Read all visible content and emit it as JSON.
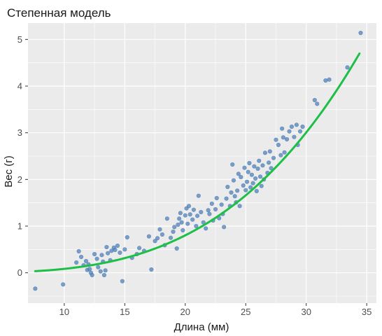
{
  "chart_data": {
    "type": "scatter",
    "title": "Степенная модель",
    "xlabel": "Длина (мм)",
    "ylabel": "Вес (г)",
    "xlim": [
      7,
      35.8
    ],
    "ylim": [
      -0.65,
      5.35
    ],
    "xticks": [
      10,
      15,
      20,
      25,
      30,
      35
    ],
    "yticks": [
      0,
      1,
      2,
      3,
      4,
      5
    ],
    "grid": true,
    "colors": {
      "points": "#4f81bd",
      "curve": "#1dbf46",
      "panel": "#ebebeb",
      "grid": "#ffffff"
    },
    "points": [
      [
        7.6,
        -0.34
      ],
      [
        9.9,
        -0.25
      ],
      [
        11.0,
        0.22
      ],
      [
        11.2,
        0.46
      ],
      [
        11.4,
        0.34
      ],
      [
        11.6,
        0.16
      ],
      [
        11.8,
        0.25
      ],
      [
        11.9,
        0.06
      ],
      [
        12.0,
        0.18
      ],
      [
        12.1,
        0.08
      ],
      [
        12.2,
        0.0
      ],
      [
        12.3,
        -0.05
      ],
      [
        12.5,
        0.4
      ],
      [
        12.7,
        0.3
      ],
      [
        12.8,
        0.12
      ],
      [
        13.0,
        0.03
      ],
      [
        13.1,
        0.38
      ],
      [
        13.2,
        0.24
      ],
      [
        13.3,
        -0.05
      ],
      [
        13.4,
        0.05
      ],
      [
        13.5,
        0.55
      ],
      [
        13.6,
        0.42
      ],
      [
        13.8,
        0.27
      ],
      [
        13.9,
        0.47
      ],
      [
        14.1,
        0.54
      ],
      [
        14.2,
        0.49
      ],
      [
        14.4,
        0.58
      ],
      [
        14.6,
        0.43
      ],
      [
        14.8,
        -0.18
      ],
      [
        15.0,
        0.5
      ],
      [
        15.2,
        0.76
      ],
      [
        15.6,
        0.32
      ],
      [
        16.0,
        0.4
      ],
      [
        16.2,
        0.53
      ],
      [
        16.6,
        0.47
      ],
      [
        17.0,
        0.78
      ],
      [
        17.2,
        0.07
      ],
      [
        17.5,
        0.68
      ],
      [
        17.7,
        0.74
      ],
      [
        17.9,
        0.93
      ],
      [
        18.1,
        0.82
      ],
      [
        18.3,
        0.59
      ],
      [
        18.5,
        1.16
      ],
      [
        18.8,
        0.75
      ],
      [
        19.0,
        0.88
      ],
      [
        19.1,
        0.98
      ],
      [
        19.3,
        0.52
      ],
      [
        19.4,
        1.03
      ],
      [
        19.5,
        1.16
      ],
      [
        19.6,
        1.28
      ],
      [
        19.7,
        1.08
      ],
      [
        19.8,
        0.91
      ],
      [
        20.0,
        1.23
      ],
      [
        20.1,
        1.38
      ],
      [
        20.2,
        1.05
      ],
      [
        20.3,
        1.43
      ],
      [
        20.4,
        1.25
      ],
      [
        20.6,
        1.14
      ],
      [
        20.7,
        1.35
      ],
      [
        20.9,
        1.0
      ],
      [
        21.0,
        1.22
      ],
      [
        21.1,
        1.65
      ],
      [
        21.3,
        1.3
      ],
      [
        21.5,
        1.08
      ],
      [
        21.7,
        0.95
      ],
      [
        21.9,
        1.34
      ],
      [
        22.0,
        1.26
      ],
      [
        22.2,
        1.48
      ],
      [
        22.3,
        1.12
      ],
      [
        22.5,
        1.36
      ],
      [
        22.6,
        1.6
      ],
      [
        22.8,
        1.17
      ],
      [
        23.0,
        1.46
      ],
      [
        23.1,
        1.26
      ],
      [
        23.2,
        0.98
      ],
      [
        23.4,
        1.59
      ],
      [
        23.5,
        1.84
      ],
      [
        23.7,
        1.43
      ],
      [
        23.8,
        1.72
      ],
      [
        23.9,
        2.32
      ],
      [
        24.0,
        1.98
      ],
      [
        24.1,
        1.64
      ],
      [
        24.2,
        1.51
      ],
      [
        24.3,
        1.76
      ],
      [
        24.4,
        2.12
      ],
      [
        24.5,
        1.43
      ],
      [
        24.6,
        2.05
      ],
      [
        24.8,
        1.87
      ],
      [
        24.9,
        2.25
      ],
      [
        25.0,
        1.77
      ],
      [
        25.1,
        1.95
      ],
      [
        25.2,
        2.16
      ],
      [
        25.3,
        2.35
      ],
      [
        25.4,
        1.83
      ],
      [
        25.5,
        2.1
      ],
      [
        25.6,
        1.92
      ],
      [
        25.7,
        2.28
      ],
      [
        25.8,
        2.02
      ],
      [
        25.9,
        1.75
      ],
      [
        26.0,
        2.23
      ],
      [
        26.1,
        2.4
      ],
      [
        26.2,
        2.06
      ],
      [
        26.3,
        1.86
      ],
      [
        26.4,
        2.3
      ],
      [
        26.5,
        2.0
      ],
      [
        26.6,
        2.57
      ],
      [
        26.8,
        2.14
      ],
      [
        26.9,
        2.36
      ],
      [
        27.0,
        2.6
      ],
      [
        27.1,
        2.24
      ],
      [
        27.3,
        2.46
      ],
      [
        27.5,
        2.85
      ],
      [
        27.7,
        2.74
      ],
      [
        27.9,
        2.52
      ],
      [
        28.0,
        3.09
      ],
      [
        28.1,
        2.9
      ],
      [
        28.2,
        2.58
      ],
      [
        28.4,
        2.86
      ],
      [
        28.6,
        3.03
      ],
      [
        28.8,
        3.13
      ],
      [
        29.0,
        2.91
      ],
      [
        29.2,
        3.17
      ],
      [
        29.3,
        2.74
      ],
      [
        29.5,
        3.03
      ],
      [
        29.7,
        3.13
      ],
      [
        30.7,
        3.7
      ],
      [
        30.9,
        3.62
      ],
      [
        31.6,
        4.12
      ],
      [
        31.9,
        4.14
      ],
      [
        33.4,
        4.4
      ],
      [
        34.5,
        5.14
      ]
    ],
    "curve": {
      "type": "power",
      "formula": "W = 4.6e-5 * L^3.26",
      "a": 4.6e-05,
      "b": 3.26,
      "x_start": 7.6,
      "x_end": 34.4
    }
  }
}
